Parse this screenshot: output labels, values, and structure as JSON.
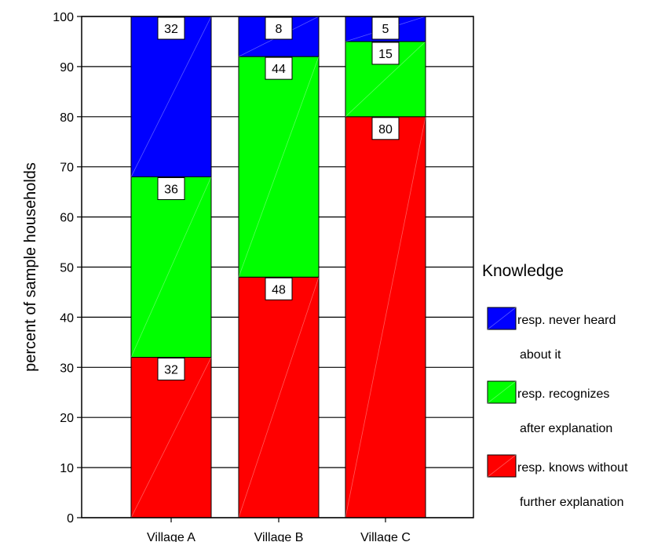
{
  "chart_data": {
    "type": "bar",
    "stacked": true,
    "categories": [
      "Village A",
      "Village B",
      "Village C"
    ],
    "series": [
      {
        "name": "resp. knows without further explanation",
        "values": [
          32,
          48,
          80
        ],
        "color": "#ff0000"
      },
      {
        "name": "resp. recognizes after explanation",
        "values": [
          36,
          44,
          15
        ],
        "color": "#00ff00"
      },
      {
        "name": "resp. never heard about it",
        "values": [
          32,
          8,
          5
        ],
        "color": "#0000ff"
      }
    ],
    "legend_order": [
      2,
      1,
      0
    ],
    "title": "",
    "xlabel": "",
    "ylabel": "percent of sample households",
    "ylim": [
      0,
      100
    ],
    "yticks": [
      0,
      10,
      20,
      30,
      40,
      50,
      60,
      70,
      80,
      90,
      100
    ],
    "grid": true,
    "legend_title": "Knowledge",
    "legend_position": "right",
    "legend_labels": [
      {
        "series": 2,
        "lines": [
          "resp. never heard",
          "about it"
        ]
      },
      {
        "series": 1,
        "lines": [
          "resp. recognizes",
          "after explanation"
        ]
      },
      {
        "series": 0,
        "lines": [
          "resp. knows without",
          "further explanation"
        ]
      }
    ]
  }
}
